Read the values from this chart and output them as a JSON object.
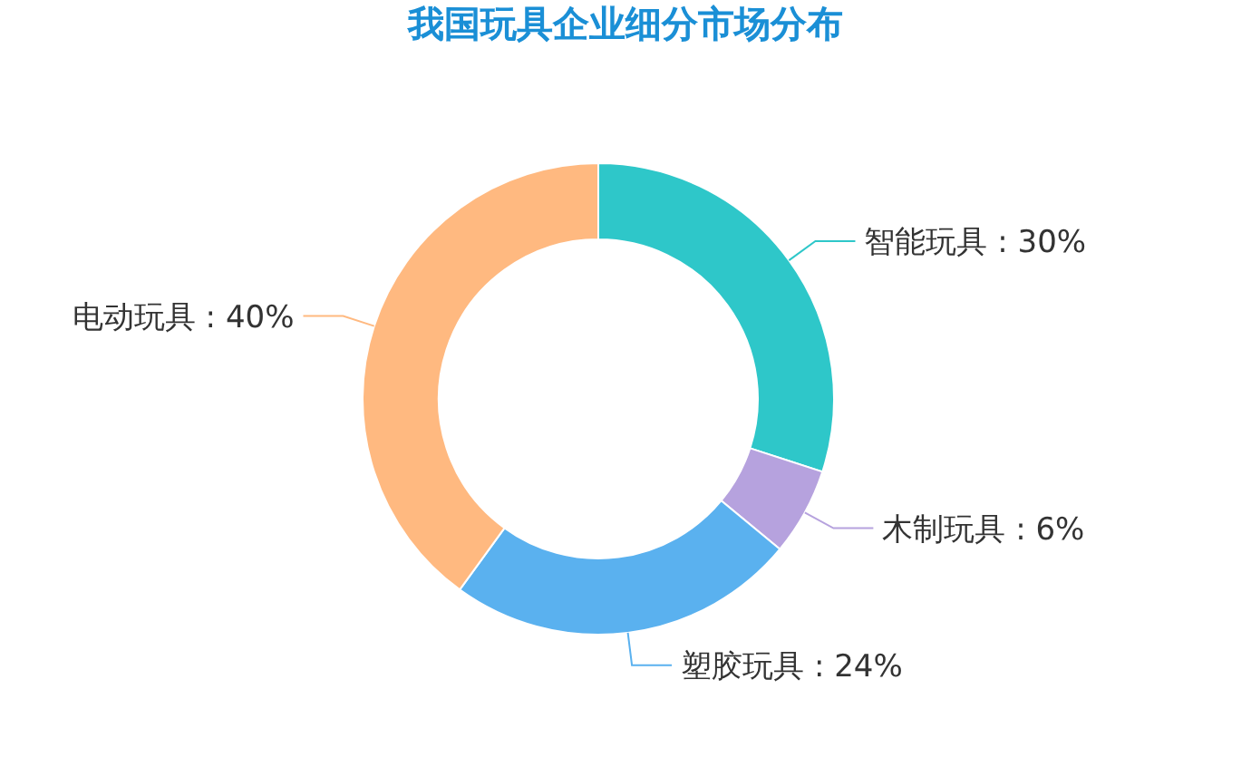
{
  "chart_data": {
    "type": "donut",
    "title": "我国玩具企业细分市场分布",
    "categories": [
      "智能玩具",
      "木制玩具",
      "塑胶玩具",
      "电动玩具"
    ],
    "values": [
      30,
      6,
      24,
      40
    ],
    "value_labels": [
      "30%",
      "6%",
      "24%",
      "40%"
    ],
    "colors": [
      "#2ec7c9",
      "#b6a2de",
      "#5ab1ef",
      "#ffb980"
    ],
    "legend": false
  }
}
